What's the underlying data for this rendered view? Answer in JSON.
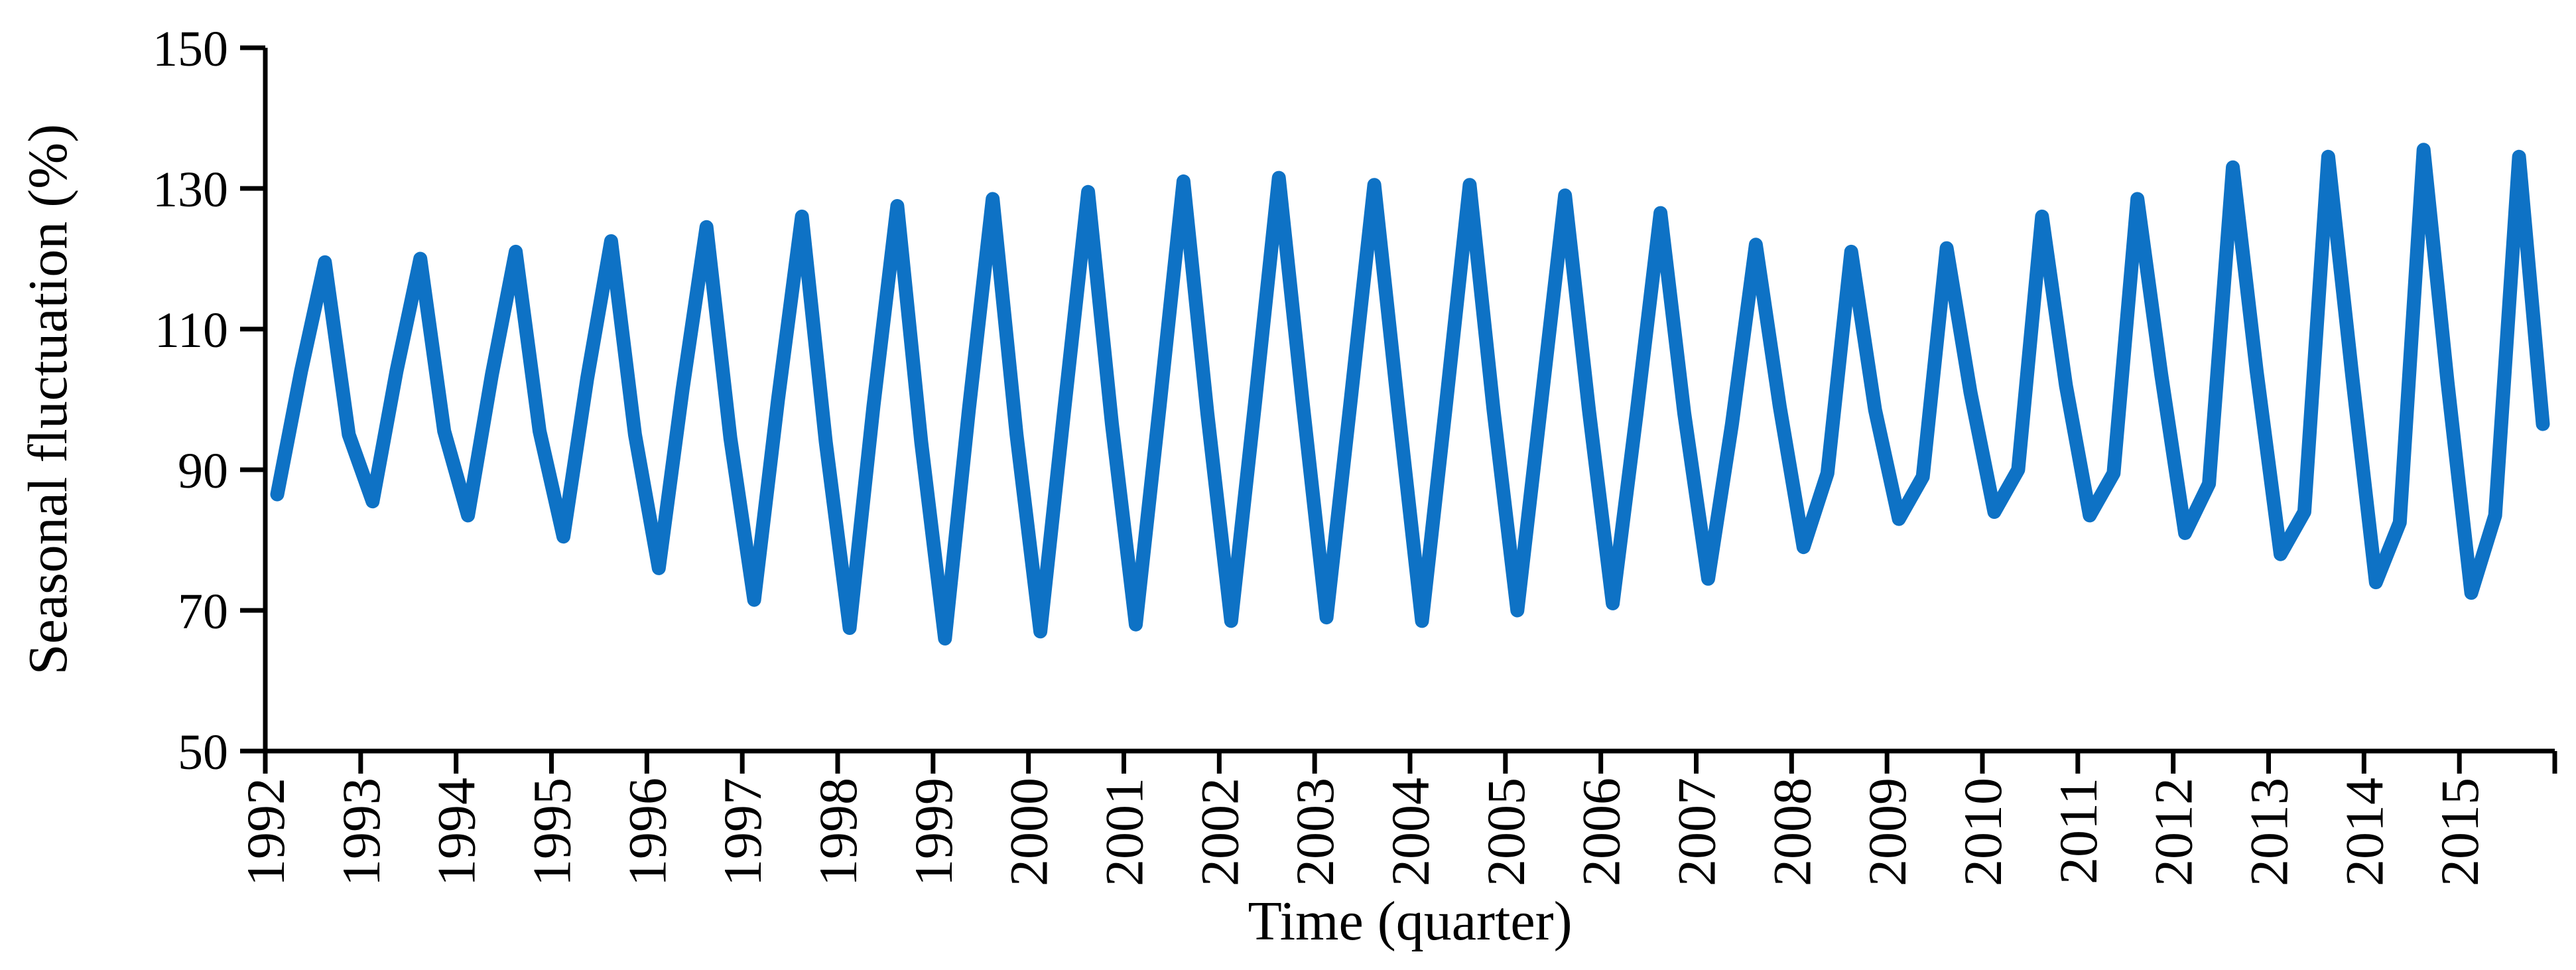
{
  "figure": {
    "background": "#ffffff",
    "axis_color": "#000000"
  },
  "chart_data": {
    "type": "line",
    "title": "",
    "xlabel": "Time (quarter)",
    "ylabel": "Seasonal fluctuation (%)",
    "frequency": "quarterly",
    "grid": false,
    "legend_position": "none",
    "ylim": [
      50,
      150
    ],
    "y_ticks": [
      50,
      70,
      90,
      110,
      130,
      150
    ],
    "x_tick_labels": [
      "1992",
      "1993",
      "1994",
      "1995",
      "1996",
      "1997",
      "1998",
      "1999",
      "2000",
      "2001",
      "2002",
      "2003",
      "2004",
      "2005",
      "2006",
      "2007",
      "2008",
      "2009",
      "2010",
      "2011",
      "2012",
      "2013",
      "2014",
      "2015"
    ],
    "x_tick_rotation_deg": -90,
    "series": [
      {
        "name": "Seasonal fluctuation",
        "color": "#0e72c5",
        "years": [
          1992,
          1993,
          1994,
          1995,
          1996,
          1997,
          1998,
          1999,
          2000,
          2001,
          2002,
          2003,
          2004,
          2005,
          2006,
          2007,
          2008,
          2009,
          2010,
          2011,
          2012,
          2013,
          2014,
          2015
        ],
        "quarterly_values": [
          [
            86.5,
            104,
            119.5,
            95
          ],
          [
            85.5,
            104,
            120,
            95.5
          ],
          [
            83.5,
            103.5,
            121,
            95.5
          ],
          [
            80.5,
            103,
            122.5,
            95
          ],
          [
            76,
            101.5,
            124.5,
            94.5
          ],
          [
            71.5,
            100,
            126,
            94
          ],
          [
            67.5,
            99,
            127.5,
            94
          ],
          [
            66,
            98.5,
            128.5,
            95
          ],
          [
            67,
            98.5,
            129.5,
            96.5
          ],
          [
            68,
            99,
            131,
            98
          ],
          [
            68.5,
            99.5,
            131.5,
            99.5
          ],
          [
            69,
            99.5,
            130.5,
            99
          ],
          [
            68.5,
            99,
            130.5,
            98.5
          ],
          [
            70,
            99.5,
            129,
            98.5
          ],
          [
            71,
            98,
            126.5,
            98
          ],
          [
            74.5,
            96.5,
            122,
            99
          ],
          [
            79,
            89.5,
            121,
            98.5
          ],
          [
            83,
            89,
            121.5,
            101
          ],
          [
            84,
            90,
            126,
            102
          ],
          [
            83.5,
            89.5,
            128.5,
            103.5
          ],
          [
            81,
            88,
            133,
            104
          ],
          [
            78,
            84,
            134.5,
            103.5
          ],
          [
            74,
            82.5,
            135.5,
            102.5
          ],
          [
            72.5,
            83.5,
            134.5,
            96.5
          ]
        ]
      }
    ]
  }
}
